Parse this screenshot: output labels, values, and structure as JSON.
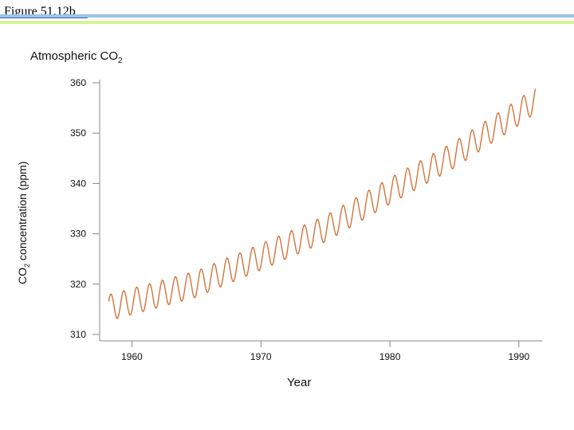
{
  "header": {
    "figure_title": "Figure 51.12b"
  },
  "chart_data": {
    "type": "line",
    "title_main": "Atmospheric CO",
    "title_sub": "2",
    "ylabel_pre": "CO",
    "ylabel_sub": "2",
    "ylabel_post": " concentration (ppm)",
    "xlabel": "Year",
    "xlim": [
      1957.5,
      1991.8
    ],
    "ylim": [
      310,
      360
    ],
    "xticks": [
      1960,
      1970,
      1980,
      1990
    ],
    "yticks": [
      310,
      320,
      330,
      340,
      350,
      360
    ],
    "grid": false,
    "series": [
      {
        "color": "#d2733a",
        "trend_points": [
          [
            1958.2,
            315.3
          ],
          [
            1965,
            320.0
          ],
          [
            1970,
            325.4
          ],
          [
            1975,
            331.0
          ],
          [
            1980,
            338.5
          ],
          [
            1985,
            345.7
          ],
          [
            1990,
            354.2
          ],
          [
            1991.3,
            356.6
          ]
        ],
        "seasonal_amplitude_ppm": 2.6
      }
    ]
  }
}
